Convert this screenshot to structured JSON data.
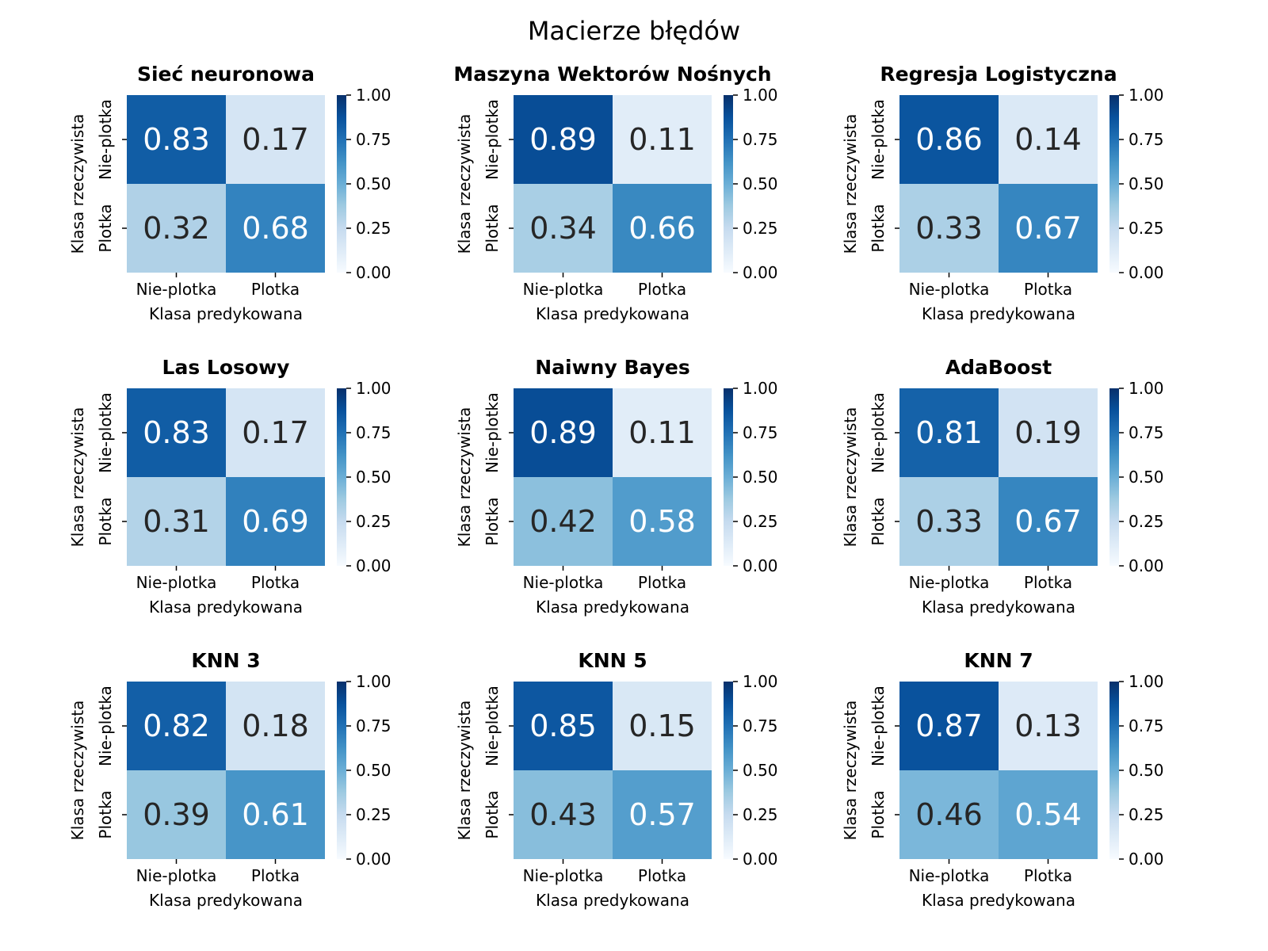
{
  "figure": {
    "title": "Macierze błędów"
  },
  "chart_data": [
    {
      "type": "heatmap",
      "title": "Sieć neuronowa",
      "xlabel": "Klasa predykowana",
      "ylabel": "Klasa rzeczywista",
      "x_categories": [
        "Nie-plotka",
        "Plotka"
      ],
      "y_categories": [
        "Nie-plotka",
        "Plotka"
      ],
      "values": [
        [
          0.83,
          0.17
        ],
        [
          0.32,
          0.68
        ]
      ],
      "colorbar": {
        "range": [
          0,
          1
        ],
        "ticks": [
          "0.00",
          "0.25",
          "0.50",
          "0.75",
          "1.00"
        ]
      },
      "colormap": "Blues"
    },
    {
      "type": "heatmap",
      "title": "Maszyna Wektorów Nośnych",
      "xlabel": "Klasa predykowana",
      "ylabel": "Klasa rzeczywista",
      "x_categories": [
        "Nie-plotka",
        "Plotka"
      ],
      "y_categories": [
        "Nie-plotka",
        "Plotka"
      ],
      "values": [
        [
          0.89,
          0.11
        ],
        [
          0.34,
          0.66
        ]
      ],
      "colorbar": {
        "range": [
          0,
          1
        ],
        "ticks": [
          "0.00",
          "0.25",
          "0.50",
          "0.75",
          "1.00"
        ]
      },
      "colormap": "Blues"
    },
    {
      "type": "heatmap",
      "title": "Regresja Logistyczna",
      "xlabel": "Klasa predykowana",
      "ylabel": "Klasa rzeczywista",
      "x_categories": [
        "Nie-plotka",
        "Plotka"
      ],
      "y_categories": [
        "Nie-plotka",
        "Plotka"
      ],
      "values": [
        [
          0.86,
          0.14
        ],
        [
          0.33,
          0.67
        ]
      ],
      "colorbar": {
        "range": [
          0,
          1
        ],
        "ticks": [
          "0.00",
          "0.25",
          "0.50",
          "0.75",
          "1.00"
        ]
      },
      "colormap": "Blues"
    },
    {
      "type": "heatmap",
      "title": "Las Losowy",
      "xlabel": "Klasa predykowana",
      "ylabel": "Klasa rzeczywista",
      "x_categories": [
        "Nie-plotka",
        "Plotka"
      ],
      "y_categories": [
        "Nie-plotka",
        "Plotka"
      ],
      "values": [
        [
          0.83,
          0.17
        ],
        [
          0.31,
          0.69
        ]
      ],
      "colorbar": {
        "range": [
          0,
          1
        ],
        "ticks": [
          "0.00",
          "0.25",
          "0.50",
          "0.75",
          "1.00"
        ]
      },
      "colormap": "Blues"
    },
    {
      "type": "heatmap",
      "title": "Naiwny Bayes",
      "xlabel": "Klasa predykowana",
      "ylabel": "Klasa rzeczywista",
      "x_categories": [
        "Nie-plotka",
        "Plotka"
      ],
      "y_categories": [
        "Nie-plotka",
        "Plotka"
      ],
      "values": [
        [
          0.89,
          0.11
        ],
        [
          0.42,
          0.58
        ]
      ],
      "colorbar": {
        "range": [
          0,
          1
        ],
        "ticks": [
          "0.00",
          "0.25",
          "0.50",
          "0.75",
          "1.00"
        ]
      },
      "colormap": "Blues"
    },
    {
      "type": "heatmap",
      "title": "AdaBoost",
      "xlabel": "Klasa predykowana",
      "ylabel": "Klasa rzeczywista",
      "x_categories": [
        "Nie-plotka",
        "Plotka"
      ],
      "y_categories": [
        "Nie-plotka",
        "Plotka"
      ],
      "values": [
        [
          0.81,
          0.19
        ],
        [
          0.33,
          0.67
        ]
      ],
      "colorbar": {
        "range": [
          0,
          1
        ],
        "ticks": [
          "0.00",
          "0.25",
          "0.50",
          "0.75",
          "1.00"
        ]
      },
      "colormap": "Blues"
    },
    {
      "type": "heatmap",
      "title": "KNN 3",
      "xlabel": "Klasa predykowana",
      "ylabel": "Klasa rzeczywista",
      "x_categories": [
        "Nie-plotka",
        "Plotka"
      ],
      "y_categories": [
        "Nie-plotka",
        "Plotka"
      ],
      "values": [
        [
          0.82,
          0.18
        ],
        [
          0.39,
          0.61
        ]
      ],
      "colorbar": {
        "range": [
          0,
          1
        ],
        "ticks": [
          "0.00",
          "0.25",
          "0.50",
          "0.75",
          "1.00"
        ]
      },
      "colormap": "Blues"
    },
    {
      "type": "heatmap",
      "title": "KNN 5",
      "xlabel": "Klasa predykowana",
      "ylabel": "Klasa rzeczywista",
      "x_categories": [
        "Nie-plotka",
        "Plotka"
      ],
      "y_categories": [
        "Nie-plotka",
        "Plotka"
      ],
      "values": [
        [
          0.85,
          0.15
        ],
        [
          0.43,
          0.57
        ]
      ],
      "colorbar": {
        "range": [
          0,
          1
        ],
        "ticks": [
          "0.00",
          "0.25",
          "0.50",
          "0.75",
          "1.00"
        ]
      },
      "colormap": "Blues"
    },
    {
      "type": "heatmap",
      "title": "KNN 7",
      "xlabel": "Klasa predykowana",
      "ylabel": "Klasa rzeczywista",
      "x_categories": [
        "Nie-plotka",
        "Plotka"
      ],
      "y_categories": [
        "Nie-plotka",
        "Plotka"
      ],
      "values": [
        [
          0.87,
          0.13
        ],
        [
          0.46,
          0.54
        ]
      ],
      "colorbar": {
        "range": [
          0,
          1
        ],
        "ticks": [
          "0.00",
          "0.25",
          "0.50",
          "0.75",
          "1.00"
        ]
      },
      "colormap": "Blues"
    }
  ]
}
